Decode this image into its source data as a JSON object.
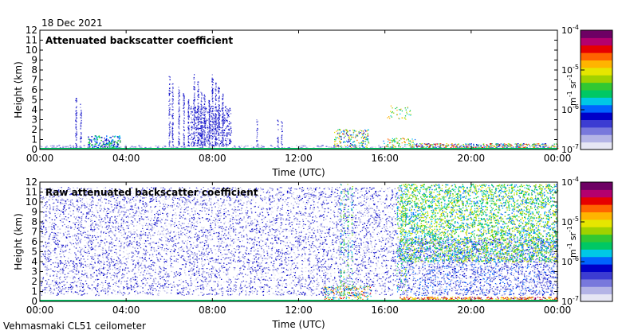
{
  "date": "18 Dec 2021",
  "instrument": "Vehmasmaki CL51 ceilometer",
  "colorbar": {
    "colors": [
      "#e6e6f4",
      "#b4b4e6",
      "#7878dc",
      "#3c3cd2",
      "#0000c8",
      "#0064ff",
      "#00c8e6",
      "#00c864",
      "#32c832",
      "#a0d200",
      "#e6e600",
      "#ffb400",
      "#ff6400",
      "#e60000",
      "#b4006e",
      "#6e0064"
    ],
    "ticks": [
      {
        "base": "10",
        "exp": "-4"
      },
      {
        "base": "10",
        "exp": "-5"
      },
      {
        "base": "10",
        "exp": "-6"
      },
      {
        "base": "10",
        "exp": "-7"
      }
    ],
    "unit_m": "m",
    "unit_m_exp": "-1",
    "unit_sr": "sr",
    "unit_sr_exp": "-1"
  },
  "chart_data": [
    {
      "type": "heatmap",
      "title": "Attenuated backscatter coefficient",
      "xlabel": "Time (UTC)",
      "ylabel": "Height (km)",
      "xlim": [
        0,
        24
      ],
      "ylim": [
        0,
        12
      ],
      "xticks": [
        "00:00",
        "04:00",
        "08:00",
        "12:00",
        "16:00",
        "20:00",
        "00:00"
      ],
      "yticks": [
        "0",
        "1",
        "2",
        "3",
        "4",
        "5",
        "6",
        "7",
        "8",
        "9",
        "10",
        "11",
        "12"
      ],
      "scale": "log",
      "value_range": [
        1e-07,
        0.0001
      ]
    },
    {
      "type": "heatmap",
      "title": "Raw attenuated backscatter coefficient",
      "xlabel": "Time (UTC)",
      "ylabel": "Height (km)",
      "xlim": [
        0,
        24
      ],
      "ylim": [
        0,
        12
      ],
      "xticks": [
        "00:00",
        "04:00",
        "08:00",
        "12:00",
        "16:00",
        "20:00",
        "00:00"
      ],
      "yticks": [
        "0",
        "1",
        "2",
        "3",
        "4",
        "5",
        "6",
        "7",
        "8",
        "9",
        "10",
        "11",
        "12"
      ],
      "scale": "log",
      "value_range": [
        1e-07,
        0.0001
      ]
    }
  ]
}
